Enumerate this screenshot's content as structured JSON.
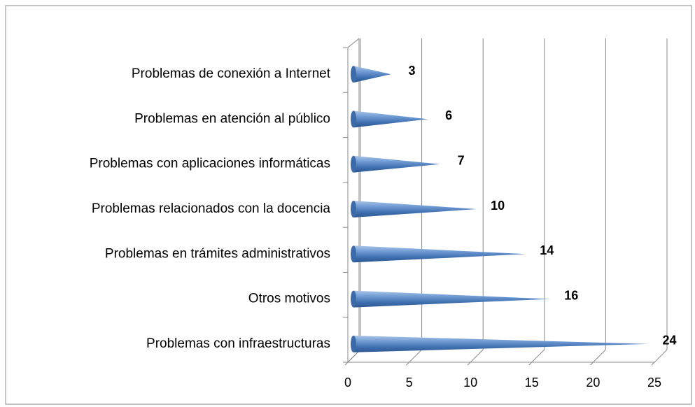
{
  "chart_data": {
    "type": "bar",
    "categories": [
      "Problemas con infraestructuras",
      "Otros motivos",
      "Problemas en trámites administrativos",
      "Problemas relacionados con la docencia",
      "Problemas con aplicaciones informáticas",
      "Problemas en atención al público",
      "Problemas de conexión a Internet"
    ],
    "values": [
      24,
      16,
      14,
      10,
      7,
      6,
      3
    ],
    "color": "#4f81bd",
    "xlim": [
      0,
      25
    ],
    "xticks": [
      0,
      5,
      10,
      15,
      20,
      25
    ],
    "grid": true
  }
}
